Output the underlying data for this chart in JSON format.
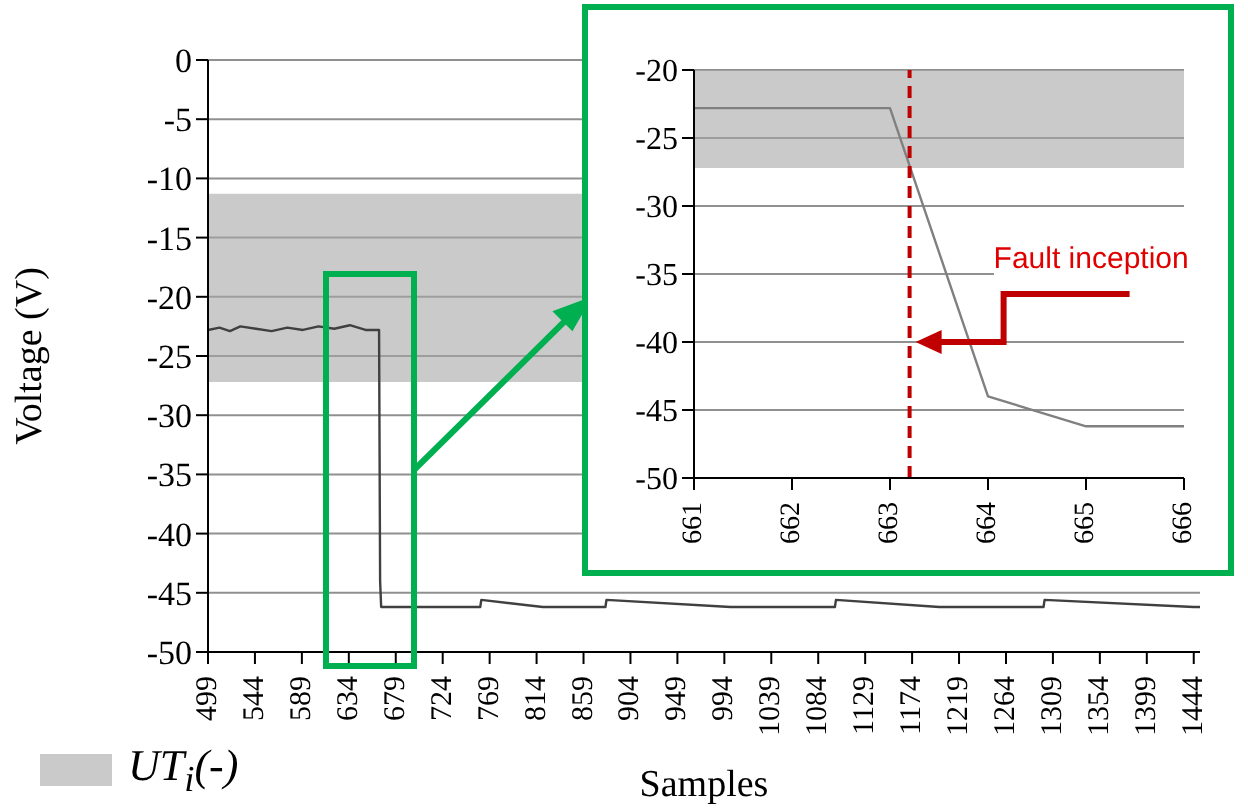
{
  "chart_data": [
    {
      "type": "line",
      "xlabel": "Samples",
      "ylabel": "Voltage (V)",
      "xlim": [
        499,
        1450
      ],
      "xticks": [
        499,
        544,
        589,
        634,
        679,
        724,
        769,
        814,
        859,
        904,
        949,
        994,
        1039,
        1084,
        1129,
        1174,
        1219,
        1264,
        1309,
        1354,
        1399,
        1444
      ],
      "ylim": [
        -50,
        0
      ],
      "yticks": [
        0,
        -5,
        -10,
        -15,
        -20,
        -25,
        -30,
        -35,
        -40,
        -45,
        -50
      ],
      "grid": "y",
      "legend": "bottom left",
      "bands": [
        {
          "axis": "y",
          "from": -27.2,
          "to": -11.3,
          "label": "UT$_{i}$(-)",
          "color": "#a6a6a6"
        }
      ],
      "series": [
        {
          "color": "#404040",
          "x": [
            499,
            510,
            520,
            530,
            545,
            560,
            575,
            590,
            605,
            620,
            635,
            650,
            663,
            664,
            665,
            700,
            760,
            761,
            820,
            880,
            881,
            1000,
            1100,
            1101,
            1200,
            1300,
            1301,
            1444,
            1450
          ],
          "values": [
            -22.8,
            -22.6,
            -22.9,
            -22.5,
            -22.7,
            -22.9,
            -22.6,
            -22.8,
            -22.5,
            -22.7,
            -22.4,
            -22.8,
            -22.8,
            -44,
            -46.2,
            -46.2,
            -46.2,
            -45.6,
            -46.2,
            -46.2,
            -45.6,
            -46.2,
            -46.2,
            -45.6,
            -46.2,
            -46.2,
            -45.6,
            -46.2,
            -46.2
          ]
        }
      ]
    },
    {
      "type": "line",
      "xlim": [
        661,
        666
      ],
      "xticks": [
        661,
        662,
        663,
        664,
        665,
        666
      ],
      "ylim": [
        -50,
        -20
      ],
      "yticks": [
        -20,
        -25,
        -30,
        -35,
        -40,
        -45,
        -50
      ],
      "grid": "y",
      "bands": [
        {
          "axis": "y",
          "from": -27.2,
          "to": -20,
          "color": "#a6a6a6"
        }
      ],
      "series": [
        {
          "color": "#808080",
          "x": [
            661,
            662,
            663,
            664,
            665,
            666
          ],
          "values": [
            -22.8,
            -22.8,
            -22.8,
            -44,
            -46.2,
            -46.2
          ]
        }
      ],
      "ref_lines": [
        {
          "axis": "x",
          "value": 663.2,
          "color": "#c00000",
          "line_style": "dashed"
        }
      ],
      "annotations": [
        "Fault inception"
      ]
    }
  ]
}
